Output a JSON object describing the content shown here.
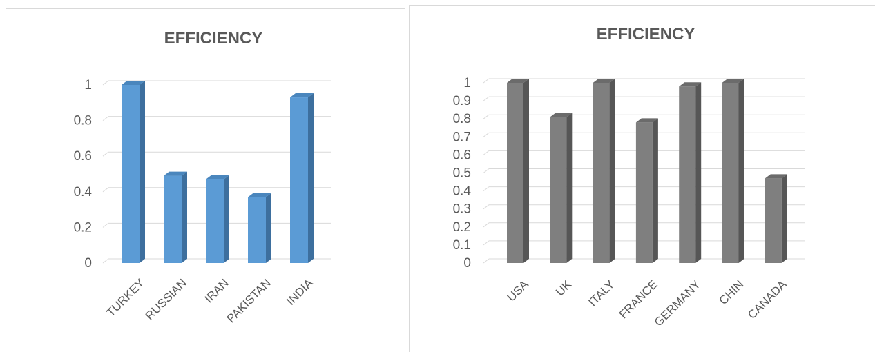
{
  "chart_data": [
    {
      "type": "bar",
      "title": "EFFICIENCY",
      "categories": [
        "TURKEY",
        "RUSSIAN",
        "IRAN",
        "PAKISTAN",
        "INDIA"
      ],
      "values": [
        1.0,
        0.49,
        0.47,
        0.37,
        0.93
      ],
      "ylim": [
        0,
        1
      ],
      "yticks": [
        0,
        0.2,
        0.4,
        0.6,
        0.8,
        1
      ],
      "ytick_labels": [
        "0",
        "0.2",
        "0.4",
        "0.6",
        "0.8",
        "1"
      ],
      "grid": true,
      "style": "3d-column",
      "colors": {
        "front": "#5b9bd5",
        "side": "#3d6f9e",
        "top": "#4a86bd"
      }
    },
    {
      "type": "bar",
      "title": "EFFICIENCY",
      "categories": [
        "USA",
        "UK",
        "ITALY",
        "FRANCE",
        "GERMANY",
        "CHIN",
        "CANADA"
      ],
      "values": [
        1.0,
        0.81,
        1.0,
        0.78,
        0.98,
        1.0,
        0.47
      ],
      "ylim": [
        0,
        1
      ],
      "yticks": [
        0,
        0.1,
        0.2,
        0.3,
        0.4,
        0.5,
        0.6,
        0.7,
        0.8,
        0.9,
        1
      ],
      "ytick_labels": [
        "0",
        "0.1",
        "0.2",
        "0.3",
        "0.4",
        "0.5",
        "0.6",
        "0.7",
        "0.8",
        "0.9",
        "1"
      ],
      "grid": true,
      "style": "3d-column",
      "colors": {
        "front": "#7f7f7f",
        "side": "#565656",
        "top": "#6b6b6b"
      }
    }
  ]
}
